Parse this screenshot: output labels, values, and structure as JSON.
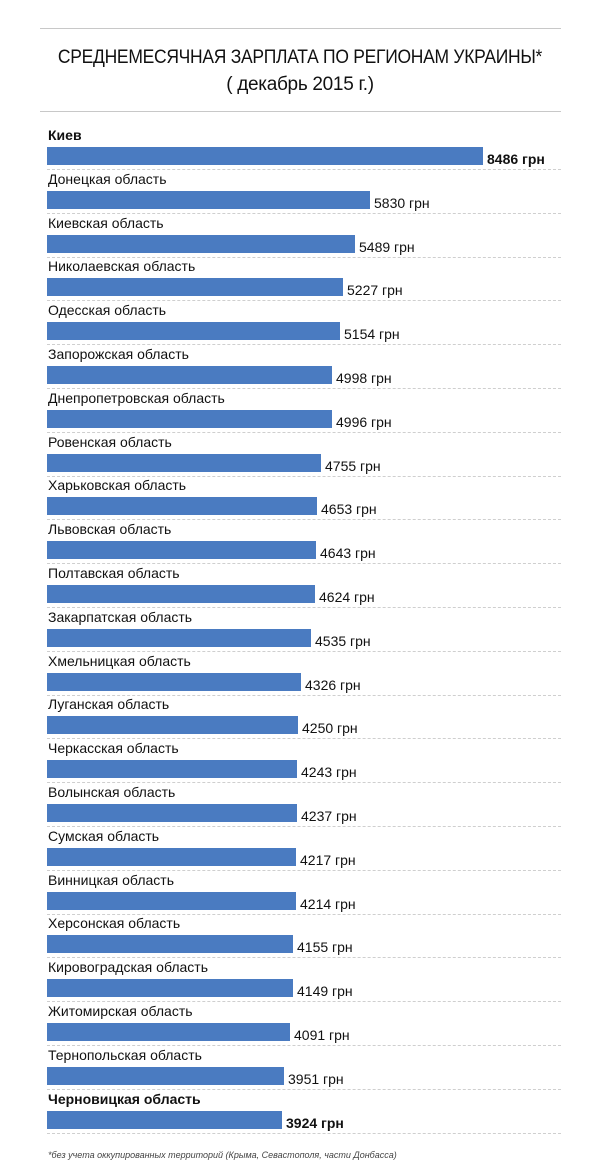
{
  "header": {
    "title": "СРЕДНЕМЕСЯЧНАЯ ЗАРПЛАТА ПО РЕГИОНАМ УКРАИНЫ*",
    "subtitle": "( декабрь 2015 г.)"
  },
  "footnote": "*без учета оккупированных территорий (Крыма, Севастополя, части Донбасса)",
  "colors": {
    "bar": "#4a7bc1",
    "separator": "#cfcfcf",
    "rule": "#c8c8c8"
  },
  "chart_data": {
    "type": "bar",
    "orientation": "horizontal",
    "title": "СРЕДНЕМЕСЯЧНАЯ ЗАРПЛАТА ПО РЕГИОНАМ УКРАИНЫ*",
    "subtitle": "( декабрь 2015 г.)",
    "unit": "грн",
    "xlabel": "",
    "ylabel": "",
    "grid": false,
    "legend": "none",
    "categories": [
      "Киев",
      "Донецкая область",
      "Киевская область",
      "Николаевская область",
      "Одесская область",
      "Запорожская область",
      "Днепропетровская область",
      "Ровенская область",
      "Харьковская область",
      "Львовская область",
      "Полтавская область",
      "Закарпатская область",
      "Хмельницкая область",
      "Луганская область",
      "Черкасская область",
      "Волынская область",
      "Сумская область",
      "Винницкая область",
      "Херсонская область",
      "Кировоградская область",
      "Житомирская область",
      "Тернопольская область",
      "Черновицкая область"
    ],
    "values": [
      8486,
      5830,
      5489,
      5227,
      5154,
      4998,
      4996,
      4755,
      4653,
      4643,
      4624,
      4535,
      4326,
      4250,
      4243,
      4237,
      4217,
      4214,
      4155,
      4149,
      4091,
      3951,
      3924
    ],
    "value_labels": [
      "8486 грн",
      "5830 грн",
      "5489 грн",
      "5227 грн",
      "5154 грн",
      "4998 грн",
      "4996 грн",
      "4755 грн",
      "4653 грн",
      "4643 грн",
      "4624 грн",
      "4535 грн",
      "4326 грн",
      "4250 грн",
      "4243 грн",
      "4237 грн",
      "4217 грн",
      "4214 грн",
      "4155 грн",
      "4149 грн",
      "4091 грн",
      "3951 грн",
      "3924 грн"
    ],
    "bold_rows": [
      0,
      22
    ],
    "bold_value_labels": [
      0,
      22
    ]
  }
}
